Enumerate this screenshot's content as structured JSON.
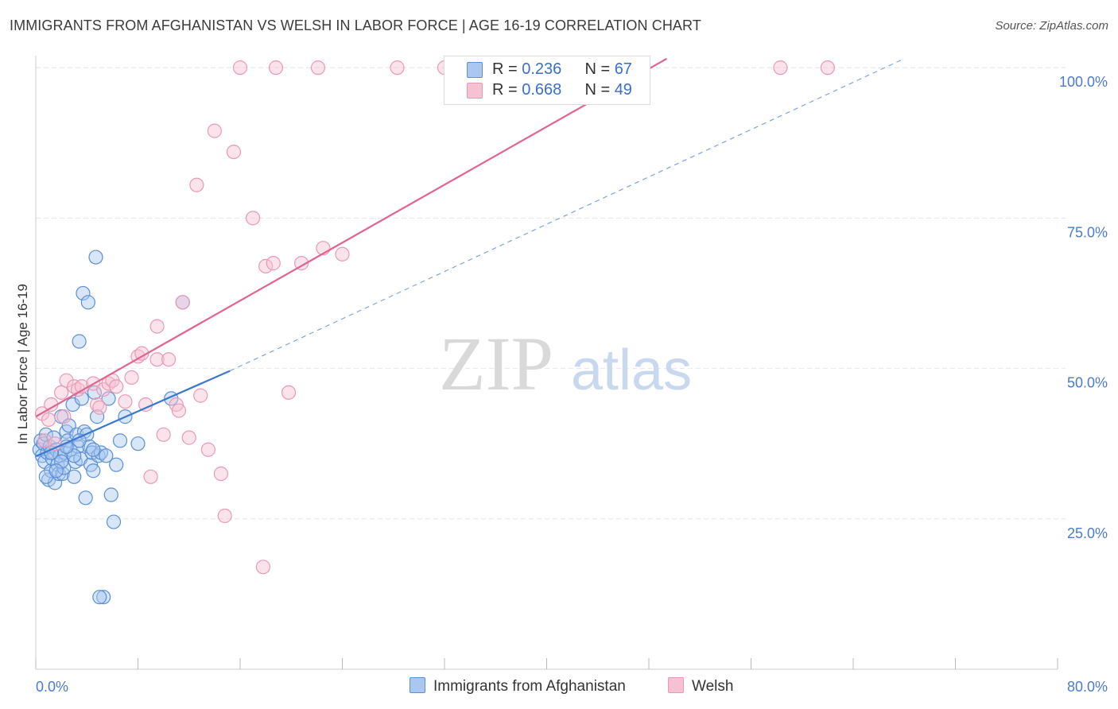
{
  "title": "IMMIGRANTS FROM AFGHANISTAN VS WELSH IN LABOR FORCE | AGE 16-19 CORRELATION CHART",
  "source": "Source: ZipAtlas.com",
  "watermark": {
    "zip": "ZIP",
    "atlas": "atlas"
  },
  "colors": {
    "blue": "#5b8fd6",
    "blue_fill": "#a9c7ef",
    "blue_line": "#3a78d0",
    "pink": "#e89ab4",
    "pink_fill": "#f6c1d2",
    "pink_line": "#e0648e",
    "axis_text": "#4a7bd0",
    "grid": "#e6e6e6"
  },
  "legend": {
    "blue": {
      "r_label": "R = ",
      "r_value": "0.236",
      "n_label": "N = ",
      "n_value": "67"
    },
    "pink": {
      "r_label": "R = ",
      "r_value": "0.668",
      "n_label": "N = ",
      "n_value": "49"
    }
  },
  "chart_data": {
    "type": "scatter",
    "title": "IMMIGRANTS FROM AFGHANISTAN VS WELSH IN LABOR FORCE | AGE 16-19 CORRELATION CHART",
    "xlabel": "",
    "ylabel": "In Labor Force | Age 16-19",
    "xlim": [
      0,
      80
    ],
    "ylim": [
      0,
      102
    ],
    "x_tick_labels": [
      "0.0%",
      "80.0%"
    ],
    "y_ticks": [
      25,
      50,
      75,
      100
    ],
    "y_tick_labels": [
      "25.0%",
      "50.0%",
      "75.0%",
      "100.0%"
    ],
    "grid": true,
    "series": [
      {
        "name": "Immigrants from Afghanistan",
        "color": "blue",
        "r": 0.236,
        "n": 67,
        "points": [
          [
            0.3,
            36.5
          ],
          [
            0.4,
            38.0
          ],
          [
            0.5,
            35.5
          ],
          [
            0.6,
            37.5
          ],
          [
            0.7,
            34.5
          ],
          [
            0.8,
            39.0
          ],
          [
            0.9,
            36.0
          ],
          [
            1.0,
            31.5
          ],
          [
            1.1,
            37.0
          ],
          [
            1.2,
            33.0
          ],
          [
            1.3,
            35.0
          ],
          [
            1.4,
            38.5
          ],
          [
            1.5,
            31.0
          ],
          [
            1.6,
            36.5
          ],
          [
            1.7,
            34.0
          ],
          [
            1.8,
            32.5
          ],
          [
            1.9,
            35.5
          ],
          [
            2.0,
            42.0
          ],
          [
            2.1,
            32.5
          ],
          [
            2.2,
            33.5
          ],
          [
            2.3,
            36.0
          ],
          [
            2.4,
            39.5
          ],
          [
            2.5,
            38.0
          ],
          [
            2.6,
            40.5
          ],
          [
            2.7,
            36.5
          ],
          [
            2.9,
            44.0
          ],
          [
            3.0,
            32.0
          ],
          [
            3.1,
            34.5
          ],
          [
            3.2,
            39.0
          ],
          [
            3.3,
            37.0
          ],
          [
            3.4,
            54.5
          ],
          [
            3.5,
            35.0
          ],
          [
            3.6,
            45.0
          ],
          [
            3.7,
            62.5
          ],
          [
            3.8,
            39.5
          ],
          [
            3.9,
            28.5
          ],
          [
            4.0,
            39.0
          ],
          [
            4.1,
            61.0
          ],
          [
            4.2,
            37.0
          ],
          [
            4.3,
            34.0
          ],
          [
            4.4,
            36.0
          ],
          [
            4.5,
            33.0
          ],
          [
            4.6,
            46.0
          ],
          [
            4.7,
            68.5
          ],
          [
            4.8,
            42.0
          ],
          [
            4.9,
            35.5
          ],
          [
            5.1,
            36.0
          ],
          [
            5.3,
            12.0
          ],
          [
            5.5,
            35.5
          ],
          [
            5.7,
            45.0
          ],
          [
            5.9,
            29.0
          ],
          [
            6.1,
            24.5
          ],
          [
            6.3,
            34.0
          ],
          [
            6.6,
            38.0
          ],
          [
            7.0,
            42.0
          ],
          [
            8.0,
            37.5
          ],
          [
            10.6,
            45.0
          ],
          [
            11.5,
            61.0
          ],
          [
            1.2,
            36.0
          ],
          [
            2.0,
            34.5
          ],
          [
            3.0,
            35.5
          ],
          [
            4.5,
            36.5
          ],
          [
            0.8,
            32.0
          ],
          [
            1.6,
            33.0
          ],
          [
            2.4,
            37.0
          ],
          [
            3.4,
            38.0
          ],
          [
            5.0,
            12.0
          ]
        ],
        "trend": {
          "x": [
            0,
            15.2
          ],
          "y": [
            35.4,
            49.6
          ],
          "solid": true
        },
        "trend_dashed": {
          "x": [
            15.2,
            68.0
          ],
          "y": [
            49.6,
            101.5
          ]
        }
      },
      {
        "name": "Welsh",
        "color": "pink",
        "r": 0.668,
        "n": 49,
        "points": [
          [
            0.5,
            42.5
          ],
          [
            0.7,
            38.0
          ],
          [
            1.0,
            41.5
          ],
          [
            1.2,
            44.0
          ],
          [
            1.5,
            37.5
          ],
          [
            2.0,
            46.0
          ],
          [
            2.2,
            42.0
          ],
          [
            2.4,
            48.0
          ],
          [
            3.0,
            47.0
          ],
          [
            3.3,
            46.5
          ],
          [
            3.6,
            47.0
          ],
          [
            4.5,
            47.5
          ],
          [
            4.8,
            44.0
          ],
          [
            5.0,
            43.5
          ],
          [
            5.3,
            46.5
          ],
          [
            5.7,
            47.5
          ],
          [
            6.0,
            48.0
          ],
          [
            6.3,
            47.0
          ],
          [
            7.0,
            44.5
          ],
          [
            7.5,
            48.5
          ],
          [
            8.0,
            52.0
          ],
          [
            8.3,
            52.5
          ],
          [
            8.6,
            44.0
          ],
          [
            9.0,
            32.0
          ],
          [
            9.5,
            51.5
          ],
          [
            9.5,
            57.0
          ],
          [
            10.0,
            39.0
          ],
          [
            10.4,
            51.5
          ],
          [
            11.0,
            44.0
          ],
          [
            11.2,
            43.0
          ],
          [
            11.5,
            61.0
          ],
          [
            12.0,
            38.5
          ],
          [
            12.6,
            80.5
          ],
          [
            12.9,
            45.5
          ],
          [
            13.5,
            36.5
          ],
          [
            14.0,
            89.5
          ],
          [
            14.5,
            32.5
          ],
          [
            14.8,
            25.5
          ],
          [
            15.5,
            86.0
          ],
          [
            17.0,
            75.0
          ],
          [
            17.8,
            17.0
          ],
          [
            18.0,
            67.0
          ],
          [
            18.6,
            67.5
          ],
          [
            19.8,
            46.0
          ],
          [
            20.8,
            67.5
          ],
          [
            22.5,
            70.0
          ],
          [
            24.0,
            69.0
          ],
          [
            16.0,
            100
          ],
          [
            18.8,
            100
          ]
        ],
        "extra_top_points": [
          [
            22.1,
            100
          ],
          [
            28.3,
            100
          ],
          [
            32.0,
            100
          ],
          [
            58.3,
            100
          ],
          [
            62.0,
            100
          ]
        ],
        "trend": {
          "x": [
            0,
            49.4
          ],
          "y": [
            42.0,
            101.5
          ],
          "solid": true
        }
      }
    ]
  },
  "bottom_legend": {
    "blue_label": "Immigrants from Afghanistan",
    "pink_label": "Welsh"
  }
}
